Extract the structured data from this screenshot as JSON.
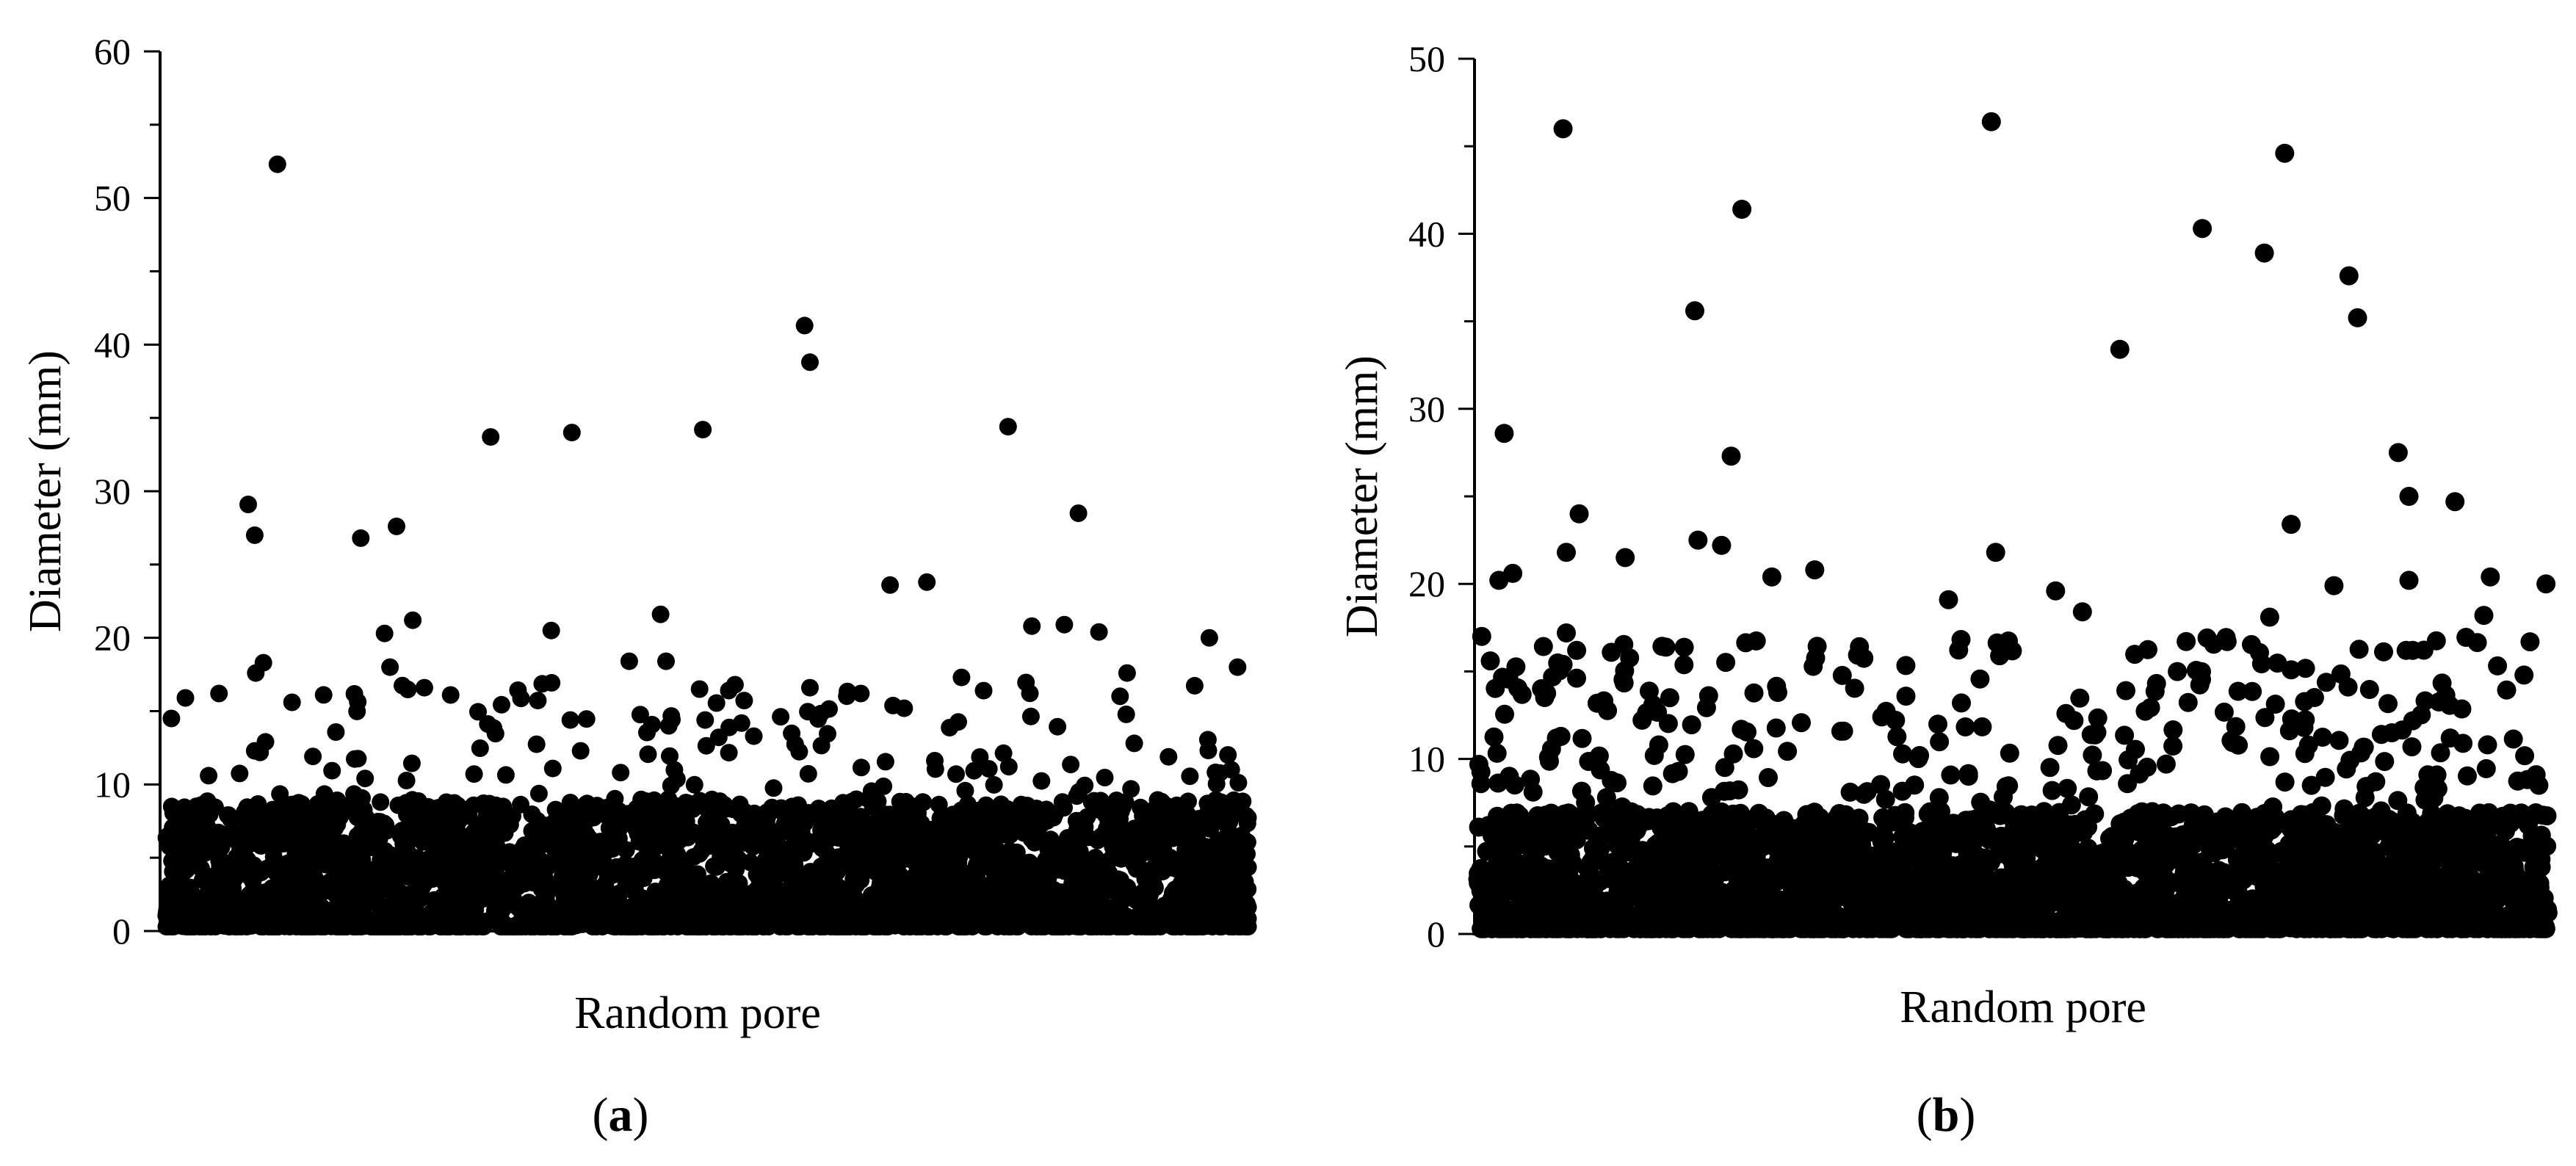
{
  "figure": {
    "background": "#ffffff",
    "marker_color": "#000000"
  },
  "chart_data": [
    {
      "type": "scatter",
      "panel_label": {
        "open": "(",
        "letter": "a",
        "close": ")"
      },
      "title": "",
      "xlabel": "Random pore",
      "ylabel": "Diameter (mm)",
      "ylim": [
        0,
        60
      ],
      "yticks": [
        "0",
        "10",
        "20",
        "30",
        "40",
        "50",
        "60"
      ],
      "y_tick_values": [
        0,
        10,
        20,
        30,
        40,
        50,
        60
      ],
      "y_minor_step": 5,
      "x_tick_labels": "none",
      "grid": false,
      "legend": "none",
      "n_points_approx": 3000,
      "highlighted_points": [
        {
          "x": 0.103,
          "y": 52.3
        },
        {
          "x": 0.076,
          "y": 29.1
        },
        {
          "x": 0.082,
          "y": 27.0
        },
        {
          "x": 0.18,
          "y": 26.8
        },
        {
          "x": 0.213,
          "y": 27.6
        },
        {
          "x": 0.3,
          "y": 33.7
        },
        {
          "x": 0.375,
          "y": 34.0
        },
        {
          "x": 0.496,
          "y": 34.2
        },
        {
          "x": 0.59,
          "y": 41.3
        },
        {
          "x": 0.595,
          "y": 38.8
        },
        {
          "x": 0.778,
          "y": 34.4
        },
        {
          "x": 0.843,
          "y": 28.5
        },
        {
          "x": 0.228,
          "y": 21.2
        },
        {
          "x": 0.202,
          "y": 20.3
        },
        {
          "x": 0.356,
          "y": 20.5
        },
        {
          "x": 0.457,
          "y": 21.6
        },
        {
          "x": 0.669,
          "y": 23.6
        },
        {
          "x": 0.703,
          "y": 23.8
        },
        {
          "x": 0.8,
          "y": 20.8
        },
        {
          "x": 0.83,
          "y": 20.9
        },
        {
          "x": 0.862,
          "y": 20.4
        },
        {
          "x": 0.964,
          "y": 20.0
        },
        {
          "x": 0.083,
          "y": 17.6
        },
        {
          "x": 0.09,
          "y": 18.3
        },
        {
          "x": 0.207,
          "y": 18.0
        },
        {
          "x": 0.428,
          "y": 18.4
        },
        {
          "x": 0.462,
          "y": 18.4
        },
        {
          "x": 0.595,
          "y": 16.6
        },
        {
          "x": 0.642,
          "y": 16.2
        },
        {
          "x": 0.735,
          "y": 17.3
        },
        {
          "x": 0.888,
          "y": 17.6
        },
        {
          "x": 0.99,
          "y": 18.0
        },
        {
          "x": 0.005,
          "y": 14.5
        },
        {
          "x": 0.049,
          "y": 16.2
        },
        {
          "x": 0.018,
          "y": 15.9
        },
        {
          "x": 0.263,
          "y": 16.1
        },
        {
          "x": 0.493,
          "y": 16.5
        },
        {
          "x": 0.52,
          "y": 16.4
        }
      ],
      "bulk_ranges": [
        {
          "ymax": 9,
          "share": 0.94
        },
        {
          "ymax": 17,
          "share": 0.06
        }
      ],
      "seed": 17
    },
    {
      "type": "scatter",
      "panel_label": {
        "open": "(",
        "letter": "b",
        "close": ")"
      },
      "title": "",
      "xlabel": "Random pore",
      "ylabel": "Diameter (mm)",
      "ylim": [
        0,
        50
      ],
      "yticks": [
        "0",
        "10",
        "20",
        "30",
        "40",
        "50"
      ],
      "y_tick_values": [
        0,
        10,
        20,
        30,
        40,
        50
      ],
      "y_minor_step": 5,
      "x_minor_ticks": 10,
      "x_tick_labels": "none",
      "grid": false,
      "legend": "none",
      "n_points_approx": 3000,
      "highlighted_points": [
        {
          "x": 0.08,
          "y": 46.0
        },
        {
          "x": 0.48,
          "y": 46.4
        },
        {
          "x": 0.754,
          "y": 44.6
        },
        {
          "x": 0.247,
          "y": 41.4
        },
        {
          "x": 0.677,
          "y": 40.3
        },
        {
          "x": 0.735,
          "y": 38.9
        },
        {
          "x": 0.814,
          "y": 37.6
        },
        {
          "x": 0.822,
          "y": 35.2
        },
        {
          "x": 0.203,
          "y": 35.6
        },
        {
          "x": 0.6,
          "y": 33.4
        },
        {
          "x": 0.025,
          "y": 28.6
        },
        {
          "x": 0.237,
          "y": 27.3
        },
        {
          "x": 0.86,
          "y": 27.5
        },
        {
          "x": 0.87,
          "y": 25.0
        },
        {
          "x": 0.913,
          "y": 24.7
        },
        {
          "x": 0.095,
          "y": 24.0
        },
        {
          "x": 0.76,
          "y": 23.4
        },
        {
          "x": 0.083,
          "y": 21.8
        },
        {
          "x": 0.206,
          "y": 22.5
        },
        {
          "x": 0.228,
          "y": 22.2
        },
        {
          "x": 0.484,
          "y": 21.8
        },
        {
          "x": 0.138,
          "y": 21.5
        },
        {
          "x": 0.315,
          "y": 20.8
        },
        {
          "x": 0.946,
          "y": 20.4
        },
        {
          "x": 0.998,
          "y": 20.0
        },
        {
          "x": 0.02,
          "y": 20.2
        },
        {
          "x": 0.033,
          "y": 20.6
        },
        {
          "x": 0.275,
          "y": 20.4
        },
        {
          "x": 0.8,
          "y": 19.9
        },
        {
          "x": 0.87,
          "y": 20.2
        },
        {
          "x": 0.004,
          "y": 17.0
        },
        {
          "x": 0.083,
          "y": 17.2
        },
        {
          "x": 0.44,
          "y": 19.1
        },
        {
          "x": 0.54,
          "y": 19.6
        },
        {
          "x": 0.74,
          "y": 18.1
        },
        {
          "x": 0.565,
          "y": 18.4
        },
        {
          "x": 0.012,
          "y": 15.6
        },
        {
          "x": 0.08,
          "y": 15.4
        },
        {
          "x": 0.94,
          "y": 18.2
        }
      ],
      "bulk_ranges": [
        {
          "ymax": 7,
          "share": 0.9
        },
        {
          "ymax": 17,
          "share": 0.1
        }
      ],
      "seed": 29
    }
  ]
}
